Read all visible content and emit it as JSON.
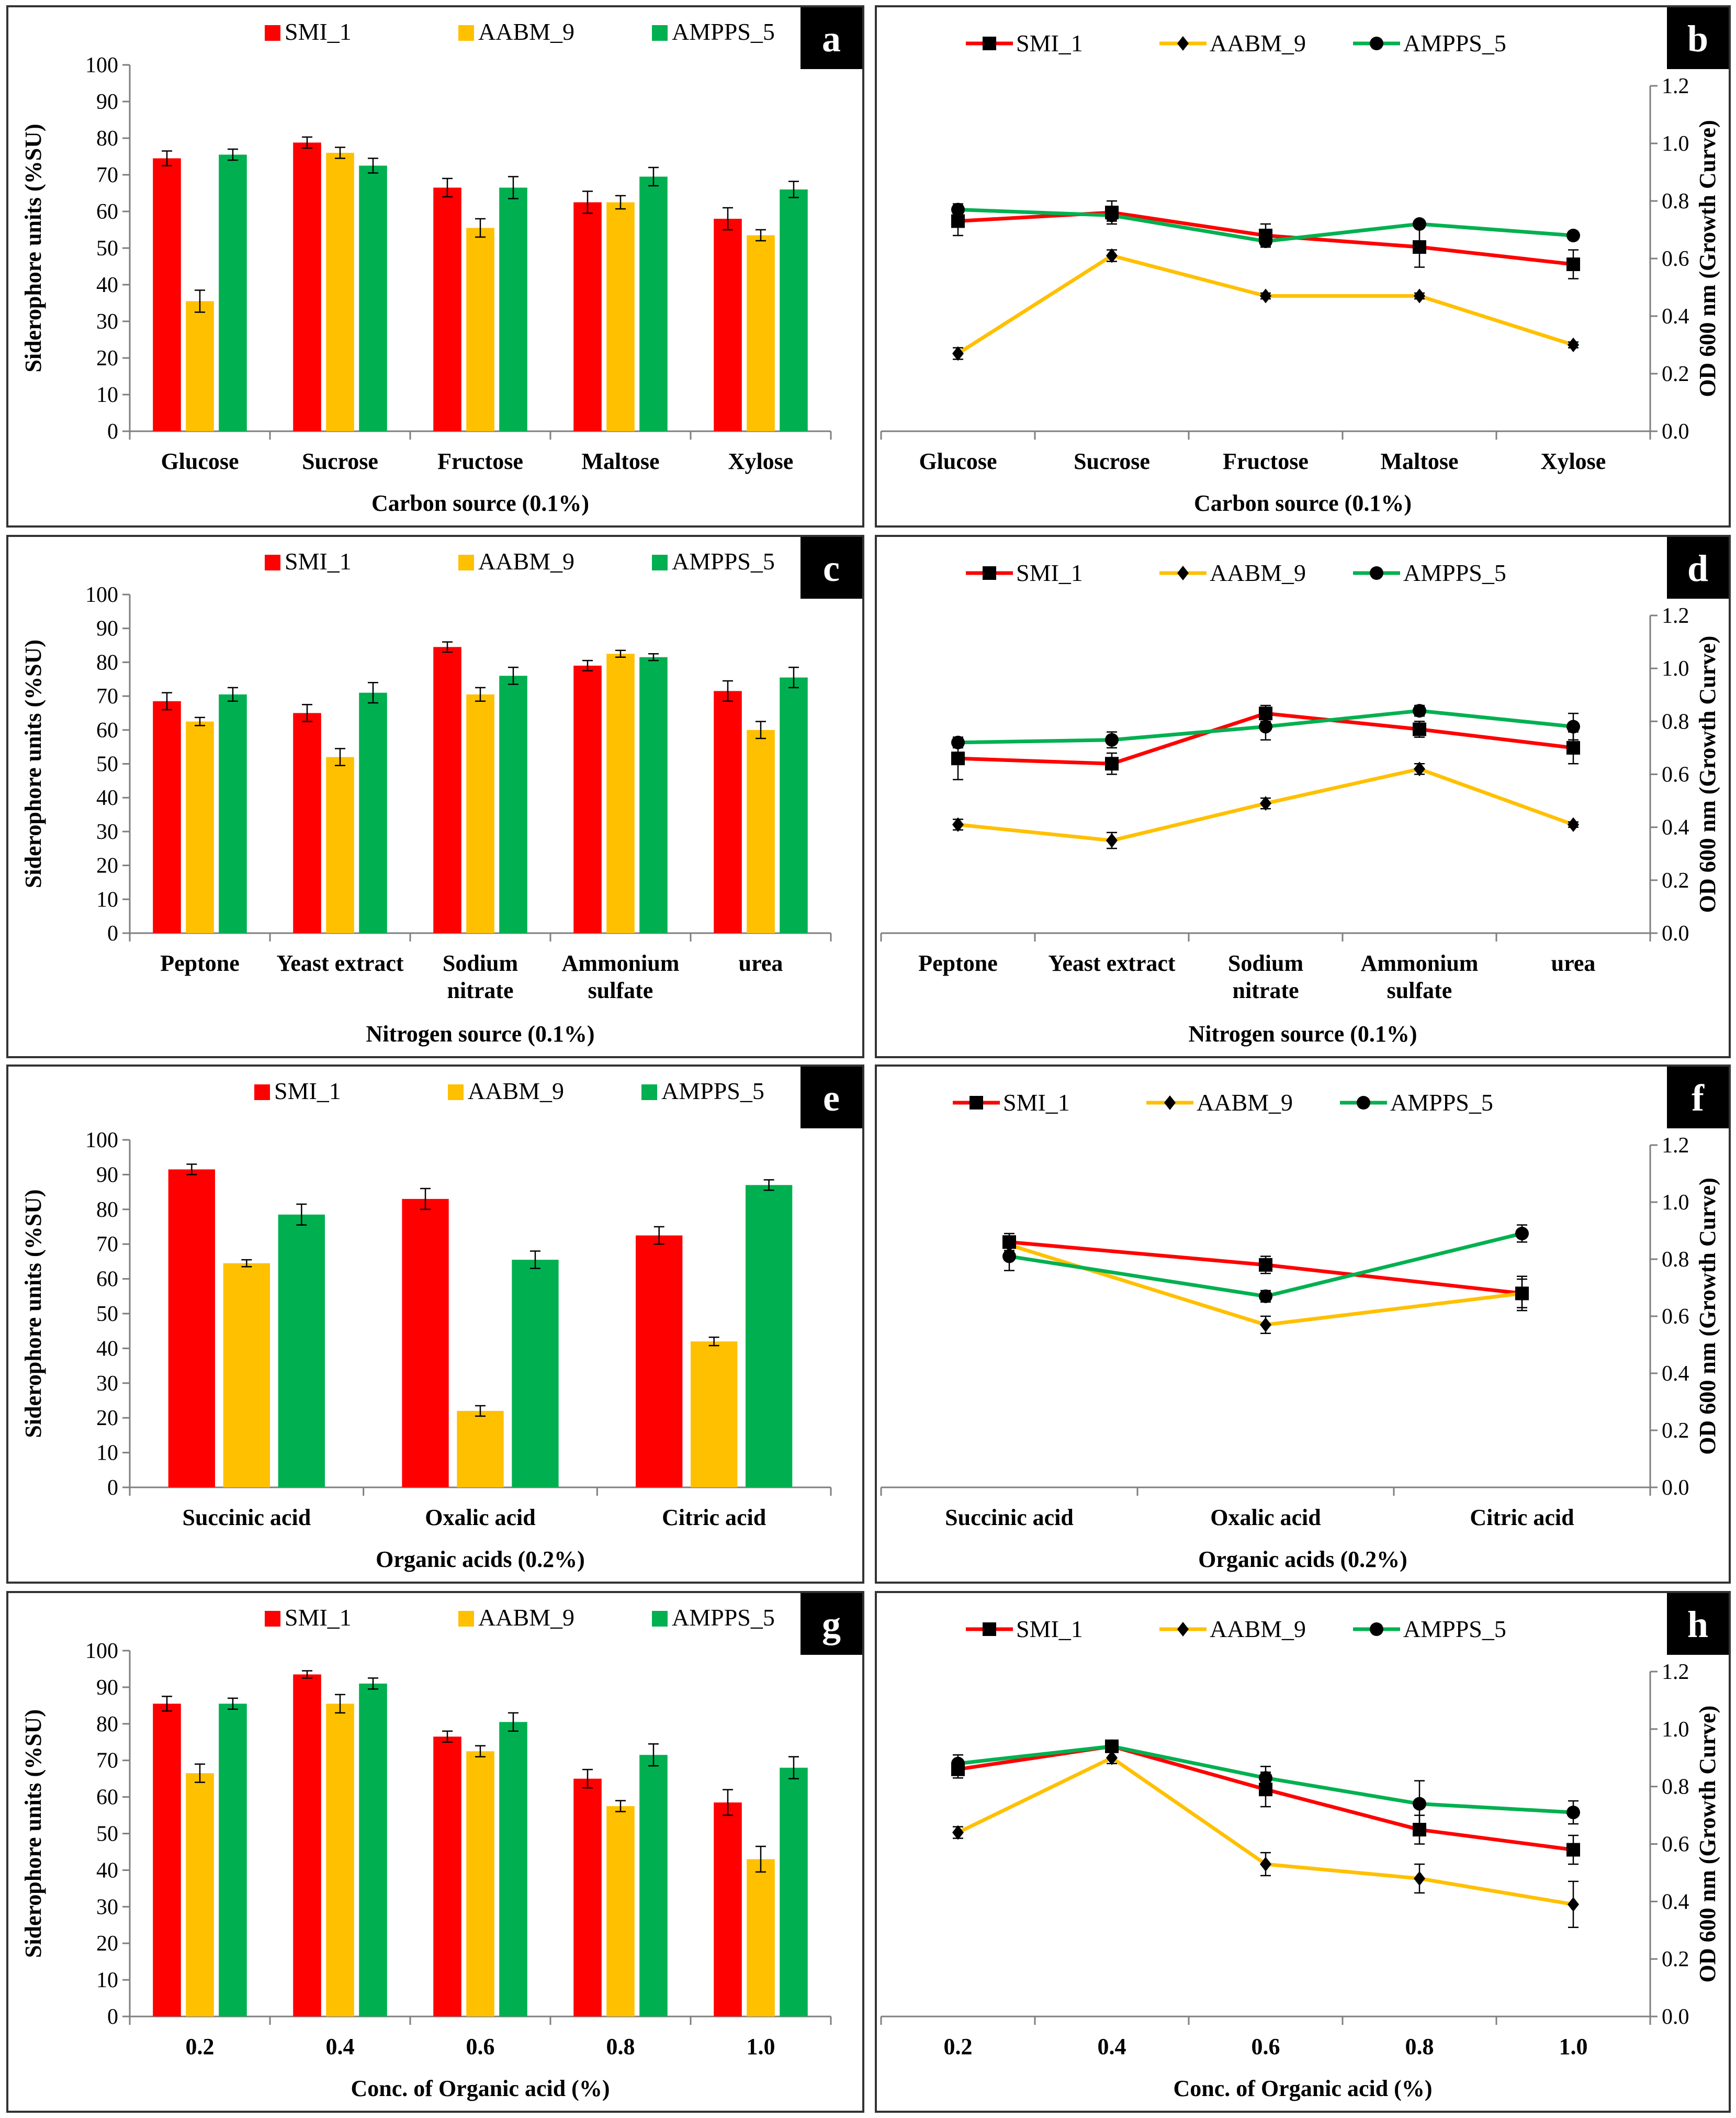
{
  "colors": {
    "SMI_1": "#ff0000",
    "AABM_9": "#ffc000",
    "AMPPS_5": "#00b050"
  },
  "series_names": [
    "SMI_1",
    "AABM_9",
    "AMPPS_5"
  ],
  "chart_data": [
    {
      "panel": "a",
      "type": "bar",
      "xlabel": "Carbon source (0.1%)",
      "ylabel": "Siderophore units (%SU)",
      "ylim": [
        0,
        100
      ],
      "yticks": [
        "0",
        "10",
        "20",
        "30",
        "40",
        "50",
        "60",
        "70",
        "80",
        "90",
        "100"
      ],
      "categories": [
        [
          "Glucose"
        ],
        [
          "Sucrose"
        ],
        [
          "Fructose"
        ],
        [
          "Maltose"
        ],
        [
          "Xylose"
        ]
      ],
      "series": [
        {
          "name": "SMI_1",
          "values": [
            74.5,
            78.8,
            66.5,
            62.5,
            58.0
          ],
          "errors": [
            2.0,
            1.5,
            2.5,
            3.0,
            3.0
          ]
        },
        {
          "name": "AABM_9",
          "values": [
            35.5,
            76.0,
            55.5,
            62.5,
            53.5
          ],
          "errors": [
            3.0,
            1.5,
            2.5,
            1.8,
            1.5
          ]
        },
        {
          "name": "AMPPS_5",
          "values": [
            75.5,
            72.5,
            66.5,
            69.5,
            66.0
          ],
          "errors": [
            1.5,
            2.0,
            3.0,
            2.5,
            2.2
          ]
        }
      ]
    },
    {
      "panel": "b",
      "type": "line",
      "xlabel": "Carbon source (0.1%)",
      "ylabel": "OD 600 nm (Growth Curve)",
      "ylim": [
        0,
        1.2
      ],
      "yticks": [
        "0.0",
        "0.2",
        "0.4",
        "0.6",
        "0.8",
        "1.0",
        "1.2"
      ],
      "categories": [
        [
          "Glucose"
        ],
        [
          "Sucrose"
        ],
        [
          "Fructose"
        ],
        [
          "Maltose"
        ],
        [
          "Xylose"
        ]
      ],
      "series": [
        {
          "name": "SMI_1",
          "values": [
            0.73,
            0.76,
            0.68,
            0.64,
            0.58
          ],
          "errors": [
            0.05,
            0.04,
            0.04,
            0.07,
            0.05
          ]
        },
        {
          "name": "AABM_9",
          "values": [
            0.27,
            0.61,
            0.47,
            0.47,
            0.3
          ],
          "errors": [
            0.02,
            0.02,
            0.01,
            0.01,
            0.01
          ]
        },
        {
          "name": "AMPPS_5",
          "values": [
            0.77,
            0.75,
            0.66,
            0.72,
            0.68
          ],
          "errors": [
            0.02,
            0.02,
            0.02,
            0.01,
            0.01
          ]
        }
      ]
    },
    {
      "panel": "c",
      "type": "bar",
      "xlabel": "Nitrogen source (0.1%)",
      "ylabel": "Siderophore units (%SU)",
      "ylim": [
        0,
        100
      ],
      "yticks": [
        "0",
        "10",
        "20",
        "30",
        "40",
        "50",
        "60",
        "70",
        "80",
        "90",
        "100"
      ],
      "categories": [
        [
          "Peptone"
        ],
        [
          "Yeast extract"
        ],
        [
          "Sodium",
          "nitrate"
        ],
        [
          "Ammonium",
          "sulfate"
        ],
        [
          "urea"
        ]
      ],
      "series": [
        {
          "name": "SMI_1",
          "values": [
            68.5,
            65.0,
            84.5,
            79.0,
            71.5
          ],
          "errors": [
            2.5,
            2.5,
            1.5,
            1.5,
            3.0
          ]
        },
        {
          "name": "AABM_9",
          "values": [
            62.5,
            52.0,
            70.5,
            82.5,
            60.0
          ],
          "errors": [
            1.2,
            2.5,
            2.0,
            1.0,
            2.5
          ]
        },
        {
          "name": "AMPPS_5",
          "values": [
            70.5,
            71.0,
            76.0,
            81.5,
            75.5
          ],
          "errors": [
            2.0,
            3.0,
            2.5,
            1.0,
            3.0
          ]
        }
      ]
    },
    {
      "panel": "d",
      "type": "line",
      "xlabel": "Nitrogen source (0.1%)",
      "ylabel": "OD 600 nm (Growth Curve)",
      "ylim": [
        0,
        1.2
      ],
      "yticks": [
        "0.0",
        "0.2",
        "0.4",
        "0.6",
        "0.8",
        "1.0",
        "1.2"
      ],
      "categories": [
        [
          "Peptone"
        ],
        [
          "Yeast extract"
        ],
        [
          "Sodium",
          "nitrate"
        ],
        [
          "Ammonium",
          "sulfate"
        ],
        [
          "urea"
        ]
      ],
      "series": [
        {
          "name": "SMI_1",
          "values": [
            0.66,
            0.64,
            0.83,
            0.77,
            0.7
          ],
          "errors": [
            0.08,
            0.04,
            0.03,
            0.03,
            0.06
          ]
        },
        {
          "name": "AABM_9",
          "values": [
            0.41,
            0.35,
            0.49,
            0.62,
            0.41
          ],
          "errors": [
            0.02,
            0.03,
            0.02,
            0.02,
            0.01
          ]
        },
        {
          "name": "AMPPS_5",
          "values": [
            0.72,
            0.73,
            0.78,
            0.84,
            0.78
          ],
          "errors": [
            0.02,
            0.03,
            0.05,
            0.02,
            0.05
          ]
        }
      ]
    },
    {
      "panel": "e",
      "type": "bar",
      "xlabel": "Organic acids (0.2%)",
      "ylabel": "Siderophore units (%SU)",
      "ylim": [
        0,
        100
      ],
      "yticks": [
        "0",
        "10",
        "20",
        "30",
        "40",
        "50",
        "60",
        "70",
        "80",
        "90",
        "100"
      ],
      "categories": [
        [
          "Succinic acid"
        ],
        [
          "Oxalic acid"
        ],
        [
          "Citric acid"
        ]
      ],
      "series": [
        {
          "name": "SMI_1",
          "values": [
            91.5,
            83.0,
            72.5
          ],
          "errors": [
            1.5,
            3.0,
            2.5
          ]
        },
        {
          "name": "AABM_9",
          "values": [
            64.5,
            22.0,
            42.0
          ],
          "errors": [
            1.0,
            1.5,
            1.2
          ]
        },
        {
          "name": "AMPPS_5",
          "values": [
            78.5,
            65.5,
            87.0
          ],
          "errors": [
            3.0,
            2.5,
            1.5
          ]
        }
      ]
    },
    {
      "panel": "f",
      "type": "line",
      "xlabel": "Organic acids (0.2%)",
      "ylabel": "OD 600 nm (Growth Curve)",
      "ylim": [
        0,
        1.2
      ],
      "yticks": [
        "0.0",
        "0.2",
        "0.4",
        "0.6",
        "0.8",
        "1.0",
        "1.2"
      ],
      "categories": [
        [
          "Succinic acid"
        ],
        [
          "Oxalic acid"
        ],
        [
          "Citric acid"
        ]
      ],
      "series": [
        {
          "name": "SMI_1",
          "values": [
            0.86,
            0.78,
            0.68
          ],
          "errors": [
            0.03,
            0.03,
            0.05
          ]
        },
        {
          "name": "AABM_9",
          "values": [
            0.85,
            0.57,
            0.68
          ],
          "errors": [
            0.02,
            0.03,
            0.06
          ]
        },
        {
          "name": "AMPPS_5",
          "values": [
            0.81,
            0.67,
            0.89
          ],
          "errors": [
            0.05,
            0.02,
            0.03
          ]
        }
      ]
    },
    {
      "panel": "g",
      "type": "bar",
      "xlabel": "Conc. of Organic acid (%)",
      "ylabel": "Siderophore units (%SU)",
      "ylim": [
        0,
        100
      ],
      "yticks": [
        "0",
        "10",
        "20",
        "30",
        "40",
        "50",
        "60",
        "70",
        "80",
        "90",
        "100"
      ],
      "categories": [
        [
          "0.2"
        ],
        [
          "0.4"
        ],
        [
          "0.6"
        ],
        [
          "0.8"
        ],
        [
          "1.0"
        ]
      ],
      "series": [
        {
          "name": "SMI_1",
          "values": [
            85.5,
            93.5,
            76.5,
            65.0,
            58.5
          ],
          "errors": [
            2.0,
            1.0,
            1.5,
            2.5,
            3.5
          ]
        },
        {
          "name": "AABM_9",
          "values": [
            66.5,
            85.5,
            72.5,
            57.5,
            43.0
          ],
          "errors": [
            2.5,
            2.5,
            1.5,
            1.5,
            3.5
          ]
        },
        {
          "name": "AMPPS_5",
          "values": [
            85.5,
            91.0,
            80.5,
            71.5,
            68.0
          ],
          "errors": [
            1.5,
            1.5,
            2.5,
            3.0,
            3.0
          ]
        }
      ]
    },
    {
      "panel": "h",
      "type": "line",
      "xlabel": "Conc. of Organic acid (%)",
      "ylabel": "OD 600 nm (Growth Curve)",
      "ylim": [
        0,
        1.2
      ],
      "yticks": [
        "0.0",
        "0.2",
        "0.4",
        "0.6",
        "0.8",
        "1.0",
        "1.2"
      ],
      "categories": [
        [
          "0.2"
        ],
        [
          "0.4"
        ],
        [
          "0.6"
        ],
        [
          "0.8"
        ],
        [
          "1.0"
        ]
      ],
      "series": [
        {
          "name": "SMI_1",
          "values": [
            0.86,
            0.94,
            0.79,
            0.65,
            0.58
          ],
          "errors": [
            0.03,
            0.02,
            0.06,
            0.05,
            0.05
          ]
        },
        {
          "name": "AABM_9",
          "values": [
            0.64,
            0.9,
            0.53,
            0.48,
            0.39
          ],
          "errors": [
            0.02,
            0.02,
            0.04,
            0.05,
            0.08
          ]
        },
        {
          "name": "AMPPS_5",
          "values": [
            0.88,
            0.94,
            0.83,
            0.74,
            0.71
          ],
          "errors": [
            0.03,
            0.02,
            0.04,
            0.08,
            0.04
          ]
        }
      ]
    }
  ]
}
